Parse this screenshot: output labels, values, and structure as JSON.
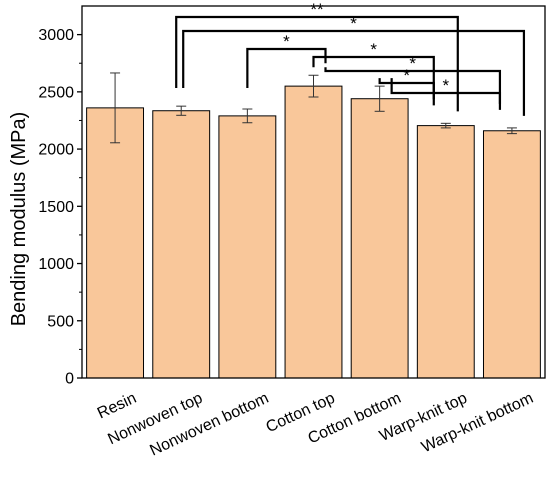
{
  "chart_data": {
    "type": "bar",
    "title": "",
    "xlabel": "",
    "ylabel": "Bending modulus (MPa)",
    "ylim": [
      0,
      3250
    ],
    "yticks": [
      0,
      500,
      1000,
      1500,
      2000,
      2500,
      3000
    ],
    "categories": [
      "Resin",
      "Nonwoven top",
      "Nonwoven bottom",
      "Cotton top",
      "Cotton bottom",
      "Warp-knit top",
      "Warp-knit bottom"
    ],
    "values": [
      2360,
      2335,
      2290,
      2550,
      2440,
      2205,
      2160
    ],
    "errors": [
      305,
      40,
      60,
      95,
      110,
      20,
      25
    ],
    "grid": false,
    "legend": "none",
    "bar_color": "#f9c79a",
    "edge_color": "#000000",
    "significance": [
      {
        "from": "Nonwoven top",
        "to": "Warp-knit top",
        "label": "**"
      },
      {
        "from": "Nonwoven top",
        "to": "Warp-knit bottom",
        "label": "*"
      },
      {
        "from": "Nonwoven bottom",
        "to": "Cotton top",
        "label": "*"
      },
      {
        "from": "Cotton top",
        "to": "Warp-knit top",
        "label": "*"
      },
      {
        "from": "Cotton top",
        "to": "Warp-knit bottom",
        "label": "*"
      },
      {
        "from": "Cotton bottom",
        "to": "Warp-knit top",
        "label": "*"
      },
      {
        "from": "Cotton bottom",
        "to": "Warp-knit bottom",
        "label": "*"
      }
    ]
  }
}
